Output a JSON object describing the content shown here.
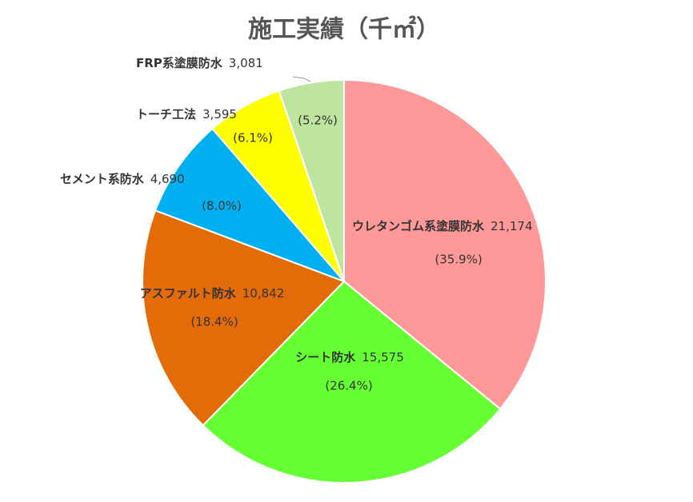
{
  "chart_data": {
    "type": "pie",
    "title": "施工実績（千㎡）",
    "categories": [
      "ウレタンゴム系塗膜防水",
      "シート防水",
      "アスファルト防水",
      "セメント系防水",
      "トーチ工法",
      "FRP系塗膜防水"
    ],
    "values": [
      21174,
      15575,
      10842,
      4690,
      3595,
      3081
    ],
    "value_labels": [
      "21,174",
      "15,575",
      "10,842",
      "4,690",
      "3,595",
      "3,081"
    ],
    "percent_labels": [
      "(35.9%)",
      "(26.4%)",
      "(18.4%)",
      "(8.0%)",
      "(6.1%)",
      "(5.2%)"
    ],
    "colors": [
      "#ff9999",
      "#66ff33",
      "#e36c09",
      "#00b0f0",
      "#ffff00",
      "#bde5a0"
    ]
  }
}
